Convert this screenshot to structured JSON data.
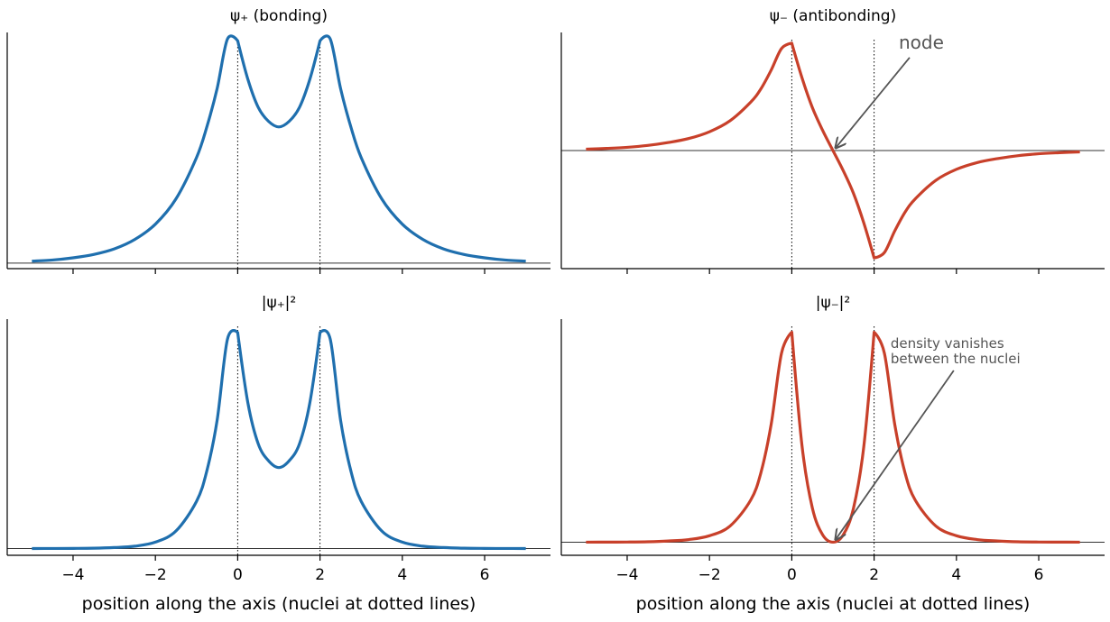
{
  "colors": {
    "bonding": "#1f6fae",
    "antibonding": "#c8402a",
    "axis": "#000000",
    "annotation": "#555555"
  },
  "chart_data": [
    {
      "id": "psi_plus",
      "type": "line",
      "title": "ψ₊  (bonding)",
      "xlabel": "",
      "show_xticklabels": false,
      "xlim": [
        -5.6,
        7.6
      ],
      "ylim": [
        -0.02,
        0.83
      ],
      "zero_line": 0,
      "nuclei": [
        0,
        2
      ],
      "xticks": [
        -4,
        -2,
        0,
        2,
        4,
        6
      ],
      "color": "bonding",
      "series": [
        {
          "x": [
            -5,
            -4.5,
            -4,
            -3.5,
            -3,
            -2.5,
            -2,
            -1.5,
            -1,
            -0.75,
            -0.5,
            -0.25,
            0,
            0.25,
            0.5,
            0.75,
            1,
            1.25,
            1.5,
            1.75,
            2,
            2.25,
            2.5,
            2.75,
            3,
            3.5,
            4,
            4.5,
            5,
            5.5,
            6,
            6.5,
            7
          ],
          "y": [
            0.007,
            0.011,
            0.019,
            0.031,
            0.051,
            0.085,
            0.14,
            0.231,
            0.38,
            0.49,
            0.628,
            0.806,
            0.8,
            0.66,
            0.56,
            0.51,
            0.49,
            0.51,
            0.56,
            0.66,
            0.8,
            0.806,
            0.628,
            0.49,
            0.38,
            0.231,
            0.14,
            0.085,
            0.051,
            0.031,
            0.019,
            0.011,
            0.007
          ]
        }
      ]
    },
    {
      "id": "psi_minus",
      "type": "line",
      "title": "ψ₋  (antibonding)",
      "xlabel": "",
      "show_xticklabels": false,
      "xlim": [
        -5.6,
        7.6
      ],
      "ylim": [
        -0.44,
        0.44
      ],
      "zero_line": 0,
      "nuclei": [
        0,
        2
      ],
      "xticks": [
        -4,
        -2,
        0,
        2,
        4,
        6
      ],
      "color": "antibonding",
      "annotation": {
        "text": "node",
        "x": 1,
        "y": 0,
        "text_x": 2.6,
        "text_y": 0.38,
        "size": "large"
      },
      "series": [
        {
          "x": [
            -5,
            -4.5,
            -4,
            -3.5,
            -3,
            -2.5,
            -2,
            -1.5,
            -1,
            -0.75,
            -0.5,
            -0.25,
            0,
            0.25,
            0.5,
            0.75,
            1,
            1.25,
            1.5,
            1.75,
            2,
            2.25,
            2.5,
            2.75,
            3,
            3.5,
            4,
            4.5,
            5,
            5.5,
            6,
            6.5,
            7
          ],
          "y": [
            0.005,
            0.008,
            0.012,
            0.019,
            0.03,
            0.045,
            0.07,
            0.111,
            0.18,
            0.23,
            0.3,
            0.38,
            0.4,
            0.27,
            0.16,
            0.075,
            0,
            -0.075,
            -0.16,
            -0.27,
            -0.4,
            -0.38,
            -0.3,
            -0.23,
            -0.18,
            -0.111,
            -0.07,
            -0.045,
            -0.03,
            -0.019,
            -0.012,
            -0.008,
            -0.005
          ]
        }
      ]
    },
    {
      "id": "psi_plus_sq",
      "type": "line",
      "title": "|ψ₊|²",
      "xlabel": "position along the axis  (nuclei at dotted lines)",
      "show_xticklabels": true,
      "xlim": [
        -5.6,
        7.6
      ],
      "ylim": [
        -0.02,
        0.68
      ],
      "zero_line": 0,
      "nuclei": [
        0,
        2
      ],
      "xticks": [
        -4,
        -2,
        0,
        2,
        4,
        6
      ],
      "xticklabels": [
        "−4",
        "−2",
        "0",
        "2",
        "4",
        "6"
      ],
      "color": "bonding",
      "series": [
        {
          "x": [
            -5,
            -4.5,
            -4,
            -3.5,
            -3,
            -2.5,
            -2,
            -1.5,
            -1,
            -0.75,
            -0.5,
            -0.25,
            0,
            0.25,
            0.5,
            0.75,
            1,
            1.25,
            1.5,
            1.75,
            2,
            2.25,
            2.5,
            2.75,
            3,
            3.5,
            4,
            4.5,
            5,
            5.5,
            6,
            6.5,
            7
          ],
          "y": [
            0.0001,
            0.0002,
            0.0004,
            0.001,
            0.003,
            0.007,
            0.019,
            0.052,
            0.14,
            0.23,
            0.38,
            0.62,
            0.64,
            0.43,
            0.31,
            0.26,
            0.24,
            0.26,
            0.31,
            0.43,
            0.64,
            0.62,
            0.38,
            0.23,
            0.14,
            0.052,
            0.019,
            0.007,
            0.003,
            0.001,
            0.0004,
            0.0002,
            0.0001
          ]
        }
      ]
    },
    {
      "id": "psi_minus_sq",
      "type": "line",
      "title": "|ψ₋|²",
      "xlabel": "position along the axis  (nuclei at dotted lines)",
      "show_xticklabels": true,
      "xlim": [
        -5.6,
        7.6
      ],
      "ylim": [
        -0.01,
        0.17
      ],
      "zero_line": 0,
      "nuclei": [
        0,
        2
      ],
      "xticks": [
        -4,
        -2,
        0,
        2,
        4,
        6
      ],
      "xticklabels": [
        "−4",
        "−2",
        "0",
        "2",
        "4",
        "6"
      ],
      "color": "antibonding",
      "annotation": {
        "text": [
          "density vanishes",
          "between the nuclei"
        ],
        "x": 1,
        "y": 0,
        "text_x": 2.4,
        "text_y": 0.148,
        "size": "small"
      },
      "series": [
        {
          "x": [
            -5,
            -4.5,
            -4,
            -3.5,
            -3,
            -2.5,
            -2,
            -1.5,
            -1,
            -0.75,
            -0.5,
            -0.25,
            0,
            0.25,
            0.5,
            0.75,
            1,
            1.25,
            1.5,
            1.75,
            2,
            2.25,
            2.5,
            2.75,
            3,
            3.5,
            4,
            4.5,
            5,
            5.5,
            6,
            6.5,
            7
          ],
          "y": [
            2e-05,
            5e-05,
            0.0001,
            0.0003,
            0.0009,
            0.002,
            0.0049,
            0.0123,
            0.032,
            0.053,
            0.09,
            0.144,
            0.16,
            0.073,
            0.026,
            0.0056,
            0,
            0.0056,
            0.026,
            0.073,
            0.16,
            0.144,
            0.09,
            0.053,
            0.032,
            0.0123,
            0.0049,
            0.002,
            0.0009,
            0.0003,
            0.0001,
            5e-05,
            2e-05
          ]
        }
      ]
    }
  ]
}
